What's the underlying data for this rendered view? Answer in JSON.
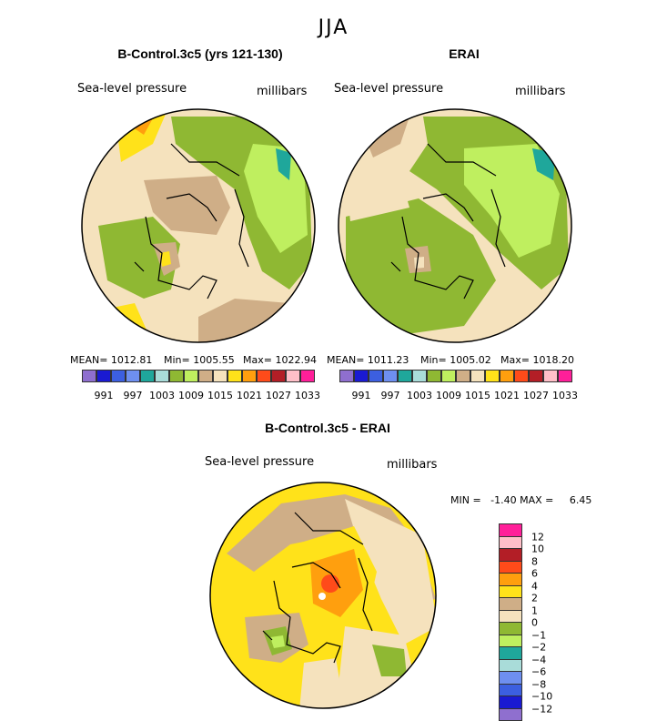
{
  "header": {
    "season": "JJA"
  },
  "panels": [
    {
      "title": "B-Control.3c5 (yrs 121-130)",
      "variable": "Sea-level pressure",
      "units": "millibars",
      "stats": {
        "mean": "MEAN= 1012.81",
        "min": "Min= 1005.55",
        "max": "Max= 1022.94"
      }
    },
    {
      "title": "ERAI",
      "variable": "Sea-level pressure",
      "units": "millibars",
      "stats": {
        "mean": "MEAN= 1011.23",
        "min": "Min= 1005.02",
        "max": "Max= 1018.20"
      }
    },
    {
      "title": "B-Control.3c5 - ERAI",
      "variable": "Sea-level pressure",
      "units": "millibars",
      "stats": {
        "minmax": "MIN =   -1.40 MAX =     6.45"
      }
    }
  ],
  "chart_data": [
    {
      "type": "heatmap",
      "title": "B-Control.3c5 (yrs 121-130)",
      "projection": "polar-stereographic north",
      "variable": "Sea-level pressure",
      "units": "millibars",
      "mean": 1012.81,
      "min": 1005.55,
      "max": 1022.94
    },
    {
      "type": "heatmap",
      "title": "ERAI",
      "projection": "polar-stereographic north",
      "variable": "Sea-level pressure",
      "units": "millibars",
      "mean": 1011.23,
      "min": 1005.02,
      "max": 1018.2
    },
    {
      "type": "heatmap",
      "title": "B-Control.3c5 - ERAI",
      "projection": "polar-stereographic north",
      "variable": "Sea-level pressure",
      "units": "millibars",
      "min": -1.4,
      "max": 6.45
    }
  ],
  "colorbar_abs": {
    "colors": [
      "#8f6fcf",
      "#1a1ad2",
      "#3c5fe0",
      "#6e8ff0",
      "#1fa79b",
      "#a9dcd9",
      "#8fb833",
      "#bfef5f",
      "#cfae87",
      "#f5e2bd",
      "#ffe21a",
      "#ff9f0e",
      "#ff4b1a",
      "#b31e26",
      "#ffbfc8",
      "#ff1f99"
    ],
    "labels": [
      "991",
      "997",
      "1003",
      "1009",
      "1015",
      "1021",
      "1027",
      "1033"
    ]
  },
  "colorbar_diff": {
    "colors": [
      "#ff1f99",
      "#ffbfc8",
      "#b31e26",
      "#ff4b1a",
      "#ff9f0e",
      "#ffe21a",
      "#cfae87",
      "#f5e2bd",
      "#8fb833",
      "#bfef5f",
      "#1fa79b",
      "#a9dcd9",
      "#6e8ff0",
      "#3c5fe0",
      "#1a1ad2",
      "#8f6fcf"
    ],
    "labels": [
      "12",
      "10",
      "8",
      "6",
      "4",
      "2",
      "1",
      "0",
      "−1",
      "−2",
      "−4",
      "−6",
      "−8",
      "−10",
      "−12"
    ]
  }
}
